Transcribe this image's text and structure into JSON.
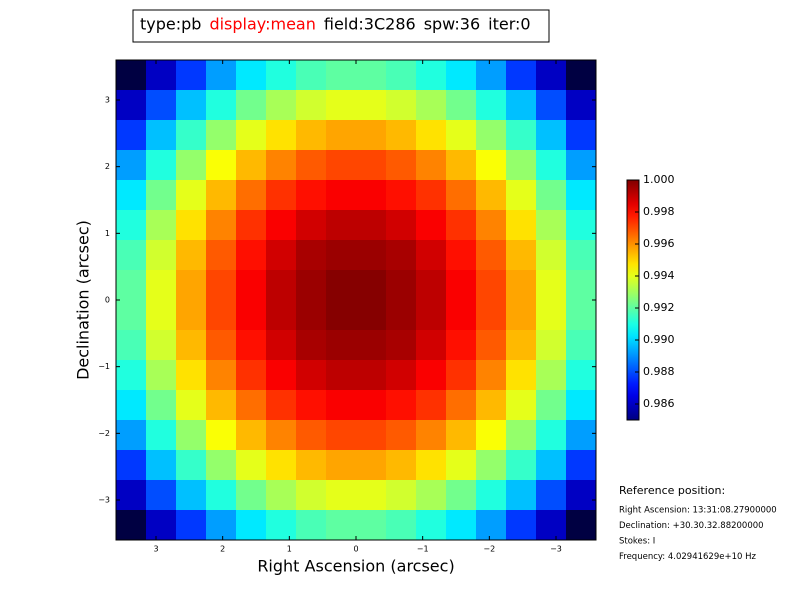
{
  "chart_data": {
    "type": "heatmap",
    "title_parts": [
      {
        "text": "type:pb",
        "color": "#000000"
      },
      {
        "text": "display:mean",
        "color": "#ff0000"
      },
      {
        "text": "field:3C286",
        "color": "#000000"
      },
      {
        "text": "spw:36",
        "color": "#000000"
      },
      {
        "text": "iter:0",
        "color": "#000000"
      }
    ],
    "x_label": "Right Ascension (arcsec)",
    "y_label": "Declination (arcsec)",
    "colormap": "jet",
    "xlim": [
      3.6,
      -3.6
    ],
    "ylim": [
      -3.6,
      3.6
    ],
    "xticks": [
      3,
      2,
      1,
      0,
      {
        "value": -1,
        "label": "−1"
      },
      {
        "value": -2,
        "label": "−2"
      },
      {
        "value": -3,
        "label": "−3"
      }
    ],
    "yticks": [
      3,
      2,
      1,
      0,
      {
        "value": -1,
        "label": "−1"
      },
      {
        "value": -2,
        "label": "−2"
      },
      {
        "value": -3,
        "label": "−3"
      }
    ],
    "x": [
      3.375,
      2.925,
      2.475,
      2.025,
      1.575,
      1.125,
      0.675,
      0.225,
      -0.225,
      -0.675,
      -1.125,
      -1.575,
      -2.025,
      -2.475,
      -2.925,
      -3.375
    ],
    "y": [
      3.375,
      2.925,
      2.475,
      2.025,
      1.575,
      1.125,
      0.675,
      0.225,
      -0.225,
      -0.675,
      -1.125,
      -1.575,
      -2.025,
      -2.475,
      -2.925,
      -3.375
    ],
    "z": [
      [
        0.9841,
        0.986,
        0.9877,
        0.9892,
        0.9903,
        0.9911,
        0.9917,
        0.992,
        0.992,
        0.9917,
        0.9911,
        0.9903,
        0.9892,
        0.9877,
        0.986,
        0.9841
      ],
      [
        0.986,
        0.988,
        0.9897,
        0.9911,
        0.9923,
        0.9931,
        0.9937,
        0.994,
        0.994,
        0.9937,
        0.9931,
        0.9923,
        0.9911,
        0.9897,
        0.988,
        0.986
      ],
      [
        0.9877,
        0.9897,
        0.9914,
        0.9928,
        0.994,
        0.9948,
        0.9954,
        0.9957,
        0.9957,
        0.9954,
        0.9948,
        0.994,
        0.9928,
        0.9914,
        0.9897,
        0.9877
      ],
      [
        0.9892,
        0.9911,
        0.9928,
        0.9943,
        0.9954,
        0.9962,
        0.9968,
        0.9971,
        0.9971,
        0.9968,
        0.9962,
        0.9954,
        0.9943,
        0.9928,
        0.9911,
        0.9892
      ],
      [
        0.9903,
        0.9923,
        0.994,
        0.9954,
        0.9965,
        0.9974,
        0.9979,
        0.9982,
        0.9982,
        0.9979,
        0.9974,
        0.9965,
        0.9954,
        0.994,
        0.9923,
        0.9903
      ],
      [
        0.9911,
        0.9931,
        0.9948,
        0.9962,
        0.9974,
        0.9982,
        0.9988,
        0.9991,
        0.9991,
        0.9988,
        0.9982,
        0.9974,
        0.9962,
        0.9948,
        0.9931,
        0.9911
      ],
      [
        0.9917,
        0.9937,
        0.9954,
        0.9968,
        0.9979,
        0.9988,
        0.9994,
        0.9996,
        0.9996,
        0.9994,
        0.9988,
        0.9979,
        0.9968,
        0.9954,
        0.9937,
        0.9917
      ],
      [
        0.992,
        0.994,
        0.9957,
        0.9971,
        0.9982,
        0.9991,
        0.9996,
        0.9999,
        0.9999,
        0.9996,
        0.9991,
        0.9982,
        0.9971,
        0.9957,
        0.994,
        0.992
      ],
      [
        0.992,
        0.994,
        0.9957,
        0.9971,
        0.9982,
        0.9991,
        0.9996,
        0.9999,
        0.9999,
        0.9996,
        0.9991,
        0.9982,
        0.9971,
        0.9957,
        0.994,
        0.992
      ],
      [
        0.9917,
        0.9937,
        0.9954,
        0.9968,
        0.9979,
        0.9988,
        0.9994,
        0.9996,
        0.9996,
        0.9994,
        0.9988,
        0.9979,
        0.9968,
        0.9954,
        0.9937,
        0.9917
      ],
      [
        0.9911,
        0.9931,
        0.9948,
        0.9962,
        0.9974,
        0.9982,
        0.9988,
        0.9991,
        0.9991,
        0.9988,
        0.9982,
        0.9974,
        0.9962,
        0.9948,
        0.9931,
        0.9911
      ],
      [
        0.9903,
        0.9923,
        0.994,
        0.9954,
        0.9965,
        0.9974,
        0.9979,
        0.9982,
        0.9982,
        0.9979,
        0.9974,
        0.9965,
        0.9954,
        0.994,
        0.9923,
        0.9903
      ],
      [
        0.9892,
        0.9911,
        0.9928,
        0.9943,
        0.9954,
        0.9962,
        0.9968,
        0.9971,
        0.9971,
        0.9968,
        0.9962,
        0.9954,
        0.9943,
        0.9928,
        0.9911,
        0.9892
      ],
      [
        0.9877,
        0.9897,
        0.9914,
        0.9928,
        0.994,
        0.9948,
        0.9954,
        0.9957,
        0.9957,
        0.9954,
        0.9948,
        0.994,
        0.9928,
        0.9914,
        0.9897,
        0.9877
      ],
      [
        0.986,
        0.988,
        0.9897,
        0.9911,
        0.9923,
        0.9931,
        0.9937,
        0.994,
        0.994,
        0.9937,
        0.9931,
        0.9923,
        0.9911,
        0.9897,
        0.988,
        0.986
      ],
      [
        0.9841,
        0.986,
        0.9877,
        0.9892,
        0.9903,
        0.9911,
        0.9917,
        0.992,
        0.992,
        0.9917,
        0.9911,
        0.9903,
        0.9892,
        0.9877,
        0.986,
        0.9841
      ]
    ],
    "clim": [
      0.985,
      1.0
    ],
    "cticks": [
      0.986,
      0.988,
      {
        "value": 0.99,
        "label": "0.990"
      },
      0.992,
      0.994,
      0.996,
      0.998,
      {
        "value": 1,
        "label": "1.000"
      }
    ],
    "reference": {
      "heading": "Reference position:",
      "lines": [
        "Right Ascension: 13:31:08.27900000",
        "Declination: +30.30.32.88200000",
        "Stokes: I",
        "Frequency: 4.02941629e+10 Hz"
      ]
    }
  }
}
